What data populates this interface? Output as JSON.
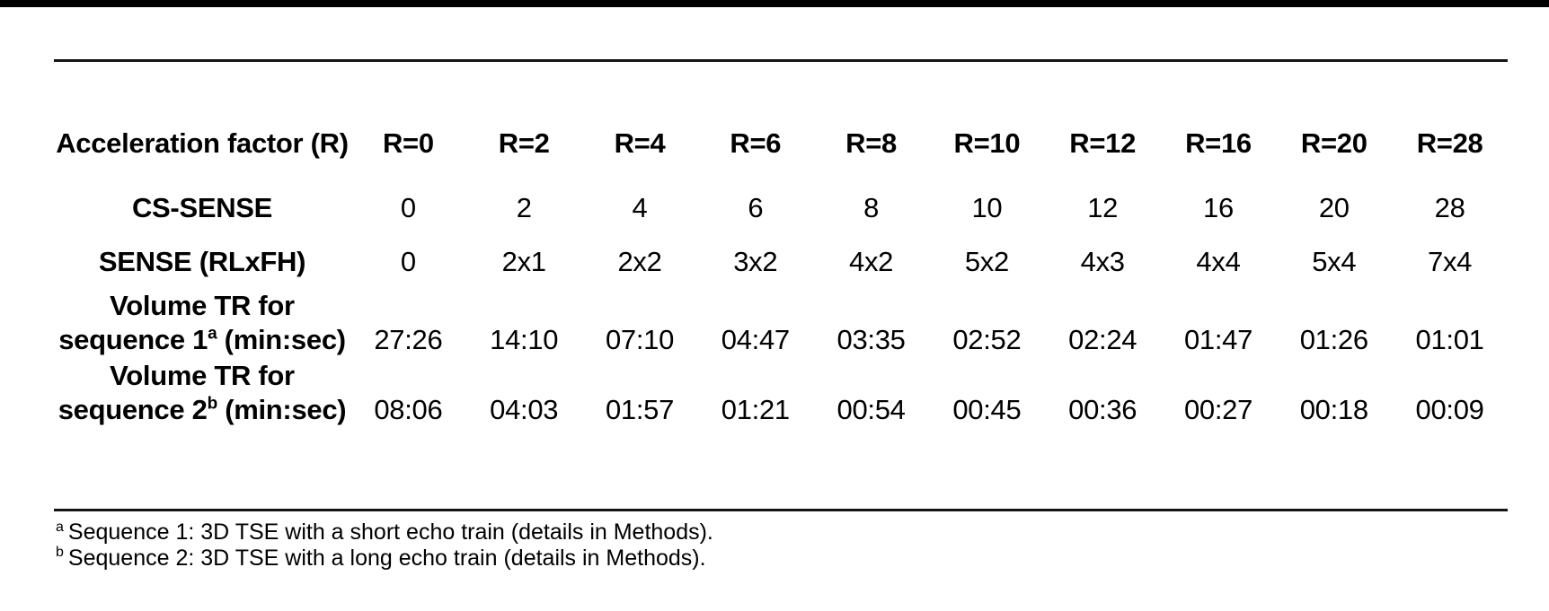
{
  "page": {
    "background": "#ffffff",
    "top_bar_color": "#000000",
    "rule_color": "#141414",
    "text_color": "#000000"
  },
  "table": {
    "header": {
      "label": "Acceleration factor (R)",
      "columns": [
        "R=0",
        "R=2",
        "R=4",
        "R=6",
        "R=8",
        "R=10",
        "R=12",
        "R=16",
        "R=20",
        "R=28"
      ]
    },
    "rows": [
      {
        "label": "CS-SENSE",
        "values": [
          "0",
          "2",
          "4",
          "6",
          "8",
          "10",
          "12",
          "16",
          "20",
          "28"
        ]
      },
      {
        "label": "SENSE (RLxFH)",
        "values": [
          "0",
          "2x1",
          "2x2",
          "3x2",
          "4x2",
          "5x2",
          "4x3",
          "4x4",
          "5x4",
          "7x4"
        ]
      },
      {
        "label_line1": "Volume TR for",
        "label_line2_prefix": "sequence 1",
        "label_superscript": "a",
        "label_line2_suffix": " (min:sec)",
        "values": [
          "27:26",
          "14:10",
          "07:10",
          "04:47",
          "03:35",
          "02:52",
          "02:24",
          "01:47",
          "01:26",
          "01:01"
        ]
      },
      {
        "label_line1": "Volume TR for",
        "label_line2_prefix": "sequence 2",
        "label_superscript": "b",
        "label_line2_suffix": " (min:sec)",
        "values": [
          "08:06",
          "04:03",
          "01:57",
          "01:21",
          "00:54",
          "00:45",
          "00:36",
          "00:27",
          "00:18",
          "00:09"
        ]
      }
    ]
  },
  "footnotes": [
    {
      "marker": "a",
      "text": "Sequence 1: 3D TSE with a short echo train (details in Methods)."
    },
    {
      "marker": "b",
      "text": "Sequence 2: 3D TSE with a long echo train (details in Methods)."
    }
  ]
}
